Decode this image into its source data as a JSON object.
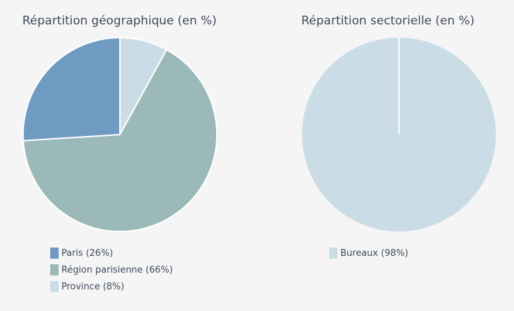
{
  "chart_data": [
    {
      "type": "pie",
      "title": "Répartition géographique (en %)",
      "slices": [
        {
          "label": "Paris",
          "value": 26,
          "legend": "Paris (26%)",
          "color": "#6f9bc2"
        },
        {
          "label": "Région parisienne",
          "value": 66,
          "legend": "Région parisienne (66%)",
          "color": "#9bb9b8"
        },
        {
          "label": "Province",
          "value": 8,
          "legend": "Province (8%)",
          "color": "#cadde6"
        }
      ],
      "legend_position": "bottom"
    },
    {
      "type": "pie",
      "title": "Répartition sectorielle (en %)",
      "slices": [
        {
          "label": "Bureaux",
          "value": 98,
          "legend": "Bureaux (98%)",
          "color": "#cadde6"
        }
      ],
      "legend_position": "bottom"
    }
  ]
}
